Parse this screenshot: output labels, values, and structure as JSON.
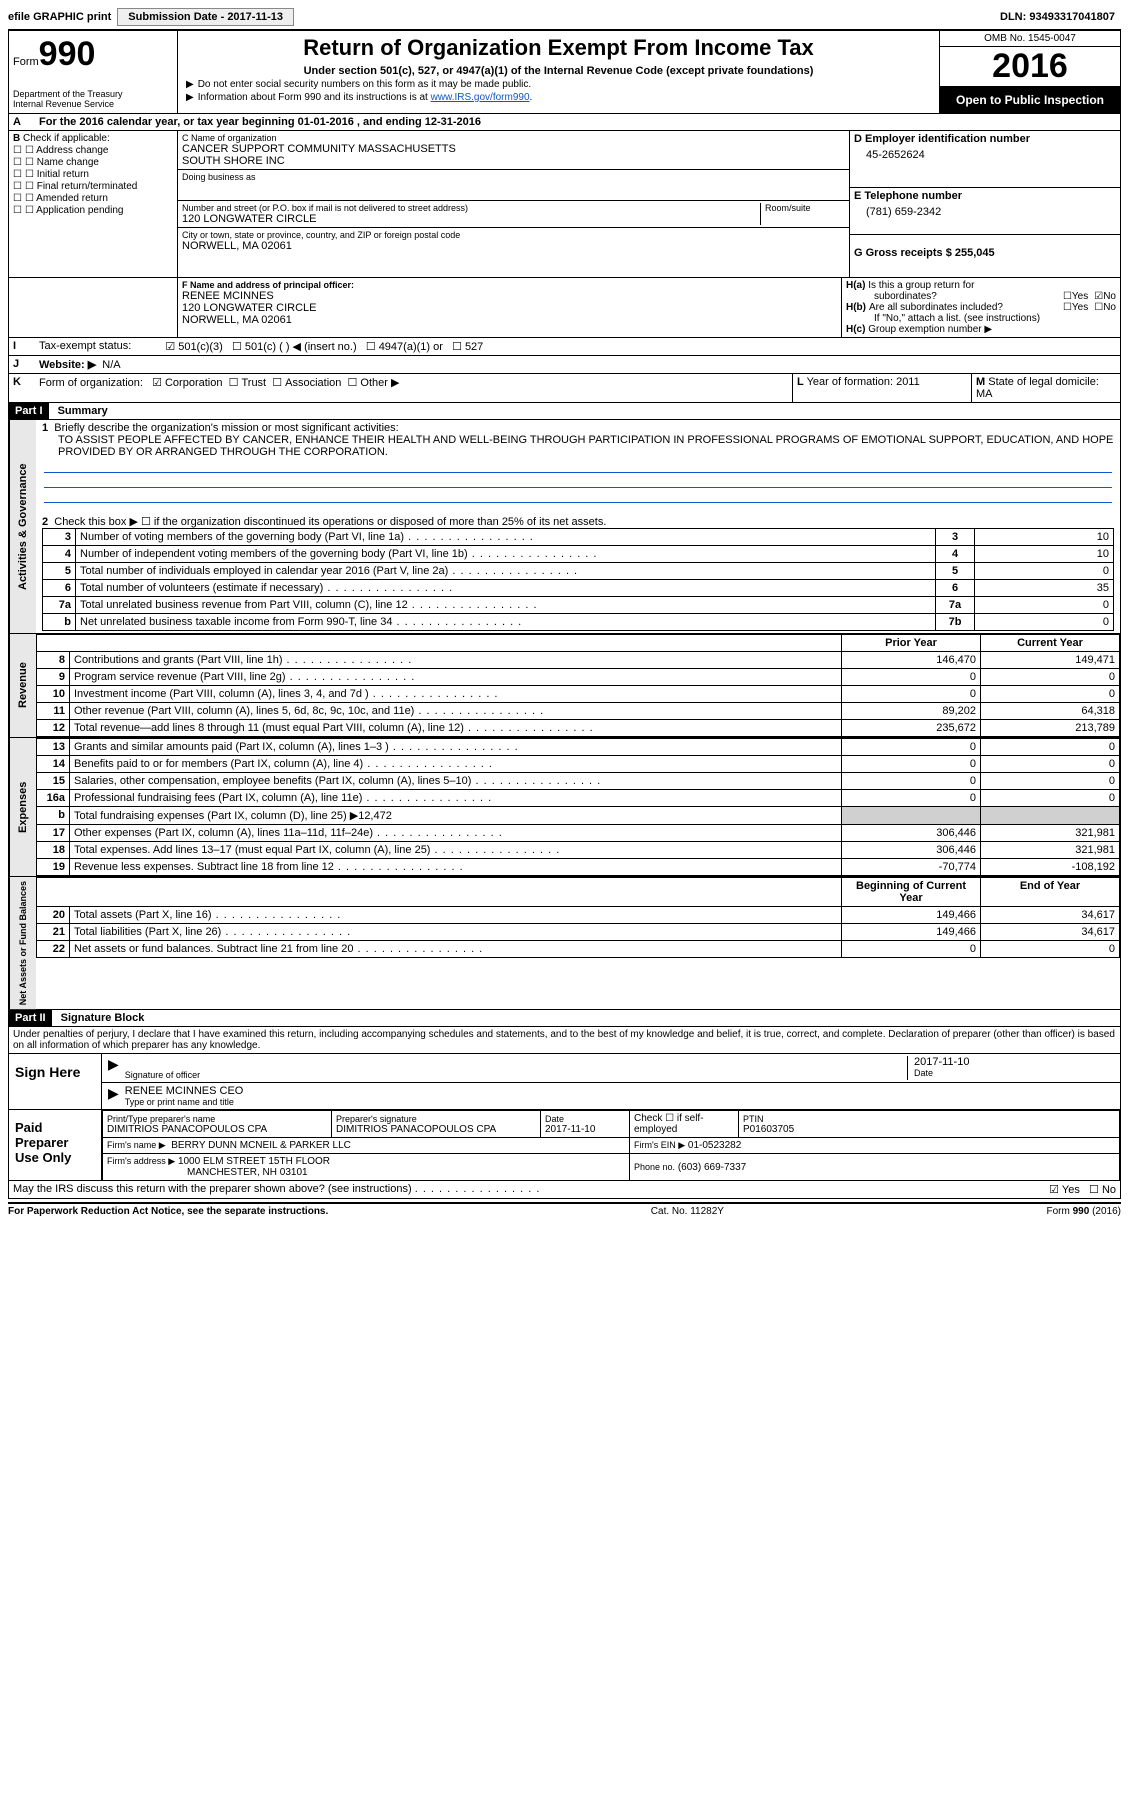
{
  "topbar": {
    "efile": "efile GRAPHIC print",
    "submission": "Submission Date - 2017-11-13",
    "dln": "DLN: 93493317041807"
  },
  "header": {
    "form_label": "Form",
    "form_no": "990",
    "dept1": "Department of the Treasury",
    "dept2": "Internal Revenue Service",
    "title": "Return of Organization Exempt From Income Tax",
    "sub": "Under section 501(c), 527, or 4947(a)(1) of the Internal Revenue Code (except private foundations)",
    "note1": "Do not enter social security numbers on this form as it may be made public.",
    "note2_pre": "Information about Form 990 and its instructions is at ",
    "note2_link": "www.IRS.gov/form990",
    "omb": "OMB No. 1545-0047",
    "year": "2016",
    "open": "Open to Public Inspection"
  },
  "sectionA": "For the 2016 calendar year, or tax year beginning 01-01-2016    , and ending 12-31-2016",
  "colB": {
    "title": "Check if applicable:",
    "items": [
      "Address change",
      "Name change",
      "Initial return",
      "Final return/terminated",
      "Amended return",
      "Application pending"
    ]
  },
  "colC": {
    "name_lbl": "C Name of organization",
    "name1": "CANCER SUPPORT COMMUNITY MASSACHUSETTS",
    "name2": "SOUTH SHORE INC",
    "dba_lbl": "Doing business as",
    "addr_lbl": "Number and street (or P.O. box if mail is not delivered to street address)",
    "room_lbl": "Room/suite",
    "addr": "120 LONGWATER CIRCLE",
    "city_lbl": "City or town, state or province, country, and ZIP or foreign postal code",
    "city": "NORWELL, MA  02061",
    "f_lbl": "F  Name and address of principal officer:",
    "f_name": "RENEE MCINNES",
    "f_addr1": "120 LONGWATER CIRCLE",
    "f_addr2": "NORWELL, MA  02061"
  },
  "colD": {
    "ein_lbl": "D Employer identification number",
    "ein": "45-2652624",
    "tel_lbl": "E Telephone number",
    "tel": "(781) 659-2342",
    "gross_lbl": "G Gross receipts $ 255,045"
  },
  "colH": {
    "a": "Is this a group return for",
    "a2": "subordinates?",
    "b": "Are all subordinates included?",
    "note": "If \"No,\" attach a list. (see instructions)",
    "c": "Group exemption number ▶"
  },
  "rowI": {
    "lbl": "Tax-exempt status:",
    "o1": "501(c)(3)",
    "o2": "501(c) (   ) ◀ (insert no.)",
    "o3": "4947(a)(1) or",
    "o4": "527"
  },
  "rowJ": {
    "lbl": "Website: ▶",
    "val": "N/A"
  },
  "rowK": {
    "lbl": "Form of organization:",
    "o1": "Corporation",
    "o2": "Trust",
    "o3": "Association",
    "o4": "Other ▶"
  },
  "rowL": "Year of formation: 2011",
  "rowM": "State of legal domicile: MA",
  "part1": {
    "tag": "Part I",
    "title": "Summary"
  },
  "summary": {
    "l1_lbl": "Briefly describe the organization's mission or most significant activities:",
    "l1_txt": "TO ASSIST PEOPLE AFFECTED BY CANCER, ENHANCE THEIR HEALTH AND WELL-BEING THROUGH PARTICIPATION IN PROFESSIONAL PROGRAMS OF EMOTIONAL SUPPORT, EDUCATION, AND HOPE PROVIDED BY OR ARRANGED THROUGH THE CORPORATION.",
    "l2": "Check this box ▶ ☐  if the organization discontinued its operations or disposed of more than 25% of its net assets.",
    "gov_rows": [
      {
        "n": "3",
        "t": "Number of voting members of the governing body (Part VI, line 1a)",
        "c": "3",
        "v": "10"
      },
      {
        "n": "4",
        "t": "Number of independent voting members of the governing body (Part VI, line 1b)",
        "c": "4",
        "v": "10"
      },
      {
        "n": "5",
        "t": "Total number of individuals employed in calendar year 2016 (Part V, line 2a)",
        "c": "5",
        "v": "0"
      },
      {
        "n": "6",
        "t": "Total number of volunteers (estimate if necessary)",
        "c": "6",
        "v": "35"
      },
      {
        "n": "7a",
        "t": "Total unrelated business revenue from Part VIII, column (C), line 12",
        "c": "7a",
        "v": "0"
      },
      {
        "n": "b",
        "t": "Net unrelated business taxable income from Form 990-T, line 34",
        "c": "7b",
        "v": "0"
      }
    ],
    "hdr_prior": "Prior Year",
    "hdr_curr": "Current Year",
    "rev_rows": [
      {
        "n": "8",
        "t": "Contributions and grants (Part VIII, line 1h)",
        "p": "146,470",
        "c": "149,471"
      },
      {
        "n": "9",
        "t": "Program service revenue (Part VIII, line 2g)",
        "p": "0",
        "c": "0"
      },
      {
        "n": "10",
        "t": "Investment income (Part VIII, column (A), lines 3, 4, and 7d )",
        "p": "0",
        "c": "0"
      },
      {
        "n": "11",
        "t": "Other revenue (Part VIII, column (A), lines 5, 6d, 8c, 9c, 10c, and 11e)",
        "p": "89,202",
        "c": "64,318"
      },
      {
        "n": "12",
        "t": "Total revenue—add lines 8 through 11 (must equal Part VIII, column (A), line 12)",
        "p": "235,672",
        "c": "213,789"
      }
    ],
    "exp_rows": [
      {
        "n": "13",
        "t": "Grants and similar amounts paid (Part IX, column (A), lines 1–3 )",
        "p": "0",
        "c": "0"
      },
      {
        "n": "14",
        "t": "Benefits paid to or for members (Part IX, column (A), line 4)",
        "p": "0",
        "c": "0"
      },
      {
        "n": "15",
        "t": "Salaries, other compensation, employee benefits (Part IX, column (A), lines 5–10)",
        "p": "0",
        "c": "0"
      },
      {
        "n": "16a",
        "t": "Professional fundraising fees (Part IX, column (A), line 11e)",
        "p": "0",
        "c": "0"
      },
      {
        "n": "b",
        "t": "Total fundraising expenses (Part IX, column (D), line 25) ▶12,472",
        "p": "",
        "c": "",
        "grey": true
      },
      {
        "n": "17",
        "t": "Other expenses (Part IX, column (A), lines 11a–11d, 11f–24e)",
        "p": "306,446",
        "c": "321,981"
      },
      {
        "n": "18",
        "t": "Total expenses. Add lines 13–17 (must equal Part IX, column (A), line 25)",
        "p": "306,446",
        "c": "321,981"
      },
      {
        "n": "19",
        "t": "Revenue less expenses. Subtract line 18 from line 12",
        "p": "-70,774",
        "c": "-108,192"
      }
    ],
    "hdr_beg": "Beginning of Current Year",
    "hdr_end": "End of Year",
    "net_rows": [
      {
        "n": "20",
        "t": "Total assets (Part X, line 16)",
        "p": "149,466",
        "c": "34,617"
      },
      {
        "n": "21",
        "t": "Total liabilities (Part X, line 26)",
        "p": "149,466",
        "c": "34,617"
      },
      {
        "n": "22",
        "t": "Net assets or fund balances. Subtract line 21 from line 20",
        "p": "0",
        "c": "0"
      }
    ],
    "vtabs": {
      "gov": "Activities & Governance",
      "rev": "Revenue",
      "exp": "Expenses",
      "net": "Net Assets or Fund Balances"
    }
  },
  "part2": {
    "tag": "Part II",
    "title": "Signature Block"
  },
  "sig": {
    "decl": "Under penalties of perjury, I declare that I have examined this return, including accompanying schedules and statements, and to the best of my knowledge and belief, it is true, correct, and complete. Declaration of preparer (other than officer) is based on all information of which preparer has any knowledge.",
    "sign_here": "Sign Here",
    "sig_of": "Signature of officer",
    "date": "Date",
    "date_v": "2017-11-10",
    "name": "RENEE MCINNES CEO",
    "name_lbl": "Type or print name and title",
    "paid": "Paid Preparer Use Only",
    "prep_name_lbl": "Print/Type preparer's name",
    "prep_name": "DIMITRIOS PANACOPOULOS CPA",
    "prep_sig_lbl": "Preparer's signature",
    "prep_sig": "DIMITRIOS PANACOPOULOS CPA",
    "prep_date_lbl": "Date",
    "prep_date": "2017-11-10",
    "check_lbl": "Check ☐ if self-employed",
    "ptin_lbl": "PTIN",
    "ptin": "P01603705",
    "firm_lbl": "Firm's name     ▶",
    "firm": "BERRY DUNN MCNEIL & PARKER LLC",
    "fein_lbl": "Firm's EIN ▶",
    "fein": "01-0523282",
    "faddr_lbl": "Firm's address ▶",
    "faddr1": "1000 ELM STREET 15TH FLOOR",
    "faddr2": "MANCHESTER, NH  03101",
    "phone_lbl": "Phone no.",
    "phone": "(603) 669-7337",
    "discuss": "May the IRS discuss this return with the preparer shown above? (see instructions)",
    "yes": "Yes",
    "no": "No"
  },
  "footer": {
    "pra": "For Paperwork Reduction Act Notice, see the separate instructions.",
    "cat": "Cat. No. 11282Y",
    "form": "Form 990 (2016)"
  }
}
